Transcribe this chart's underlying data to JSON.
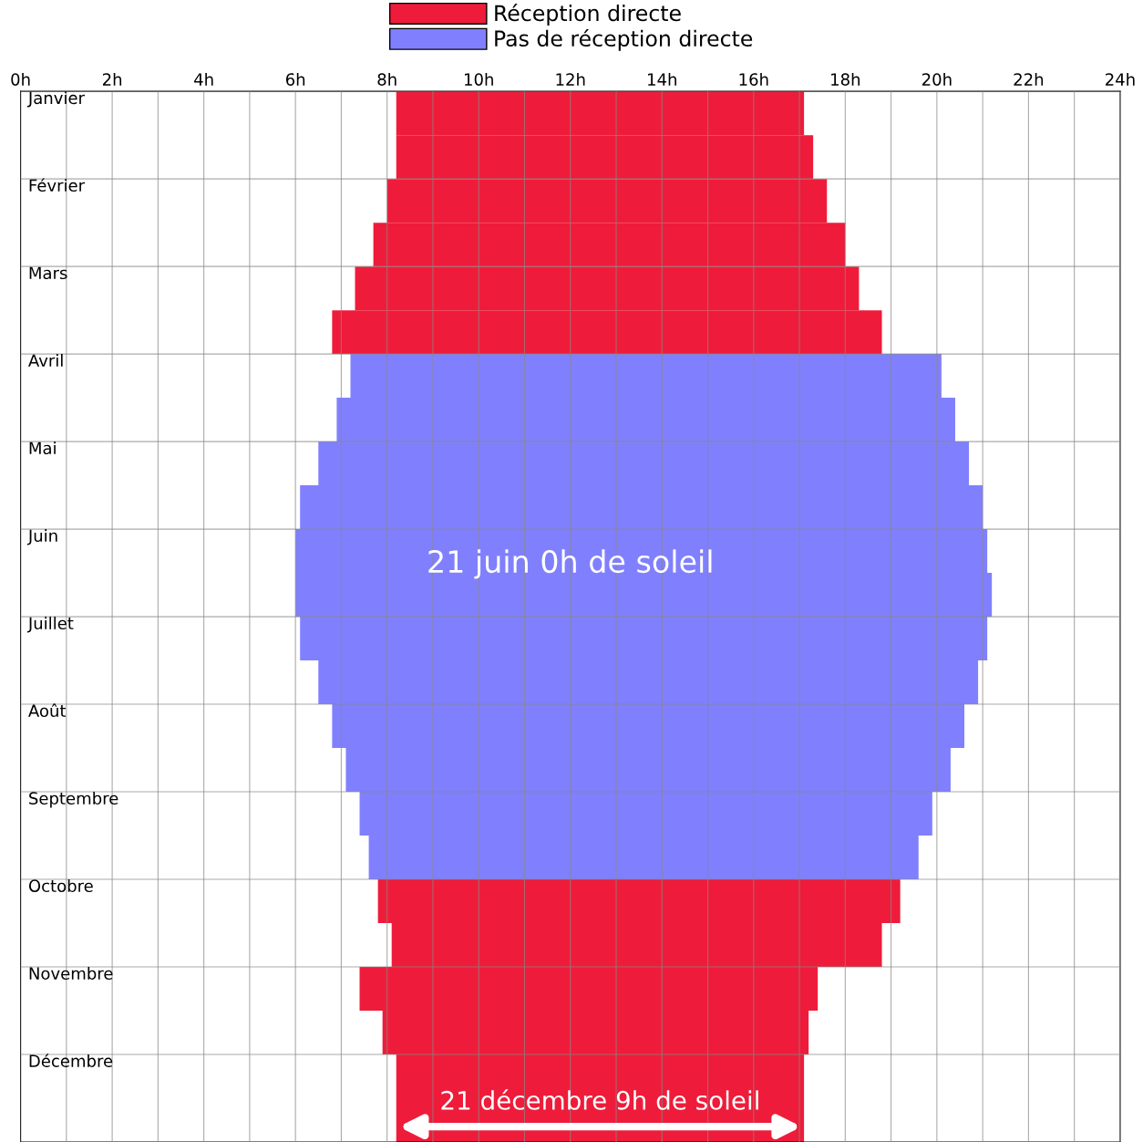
{
  "chart_data": {
    "type": "bar",
    "orientation": "horizontal",
    "categories": [
      "Janvier",
      null,
      "Février",
      null,
      "Mars",
      null,
      "Avril",
      null,
      "Mai",
      null,
      "Juin",
      null,
      "Juillet",
      null,
      "Août",
      null,
      "Septembre",
      null,
      "Octobre",
      null,
      "Novembre",
      null,
      "Décembre",
      null
    ],
    "series": [
      {
        "name": "Réception directe",
        "color": "#ee1c3a",
        "base": [
          8.2,
          8.2,
          8.0,
          7.7,
          7.3,
          6.8,
          null,
          null,
          null,
          null,
          null,
          null,
          null,
          null,
          null,
          null,
          null,
          null,
          7.8,
          8.1,
          7.4,
          7.9,
          8.2,
          8.2
        ],
        "values": [
          8.9,
          9.1,
          9.6,
          10.3,
          11.0,
          12.0,
          null,
          null,
          null,
          null,
          null,
          null,
          null,
          null,
          null,
          null,
          null,
          null,
          11.4,
          10.7,
          10.0,
          9.3,
          8.9,
          8.9
        ]
      },
      {
        "name": "Pas de réception directe",
        "color": "#8080ff",
        "base": [
          null,
          null,
          null,
          null,
          null,
          null,
          7.2,
          6.9,
          6.5,
          6.1,
          6.0,
          6.0,
          6.1,
          6.5,
          6.8,
          7.1,
          7.4,
          7.6,
          null,
          null,
          null,
          null,
          null,
          null
        ],
        "values": [
          null,
          null,
          null,
          null,
          null,
          null,
          12.9,
          13.5,
          14.2,
          14.9,
          15.1,
          15.2,
          15.0,
          14.4,
          13.8,
          13.2,
          12.5,
          12.0,
          null,
          null,
          null,
          null,
          null,
          null
        ]
      }
    ],
    "xlim": [
      0,
      24
    ],
    "xticks": [
      {
        "value": 0,
        "label": "0h"
      },
      {
        "value": 1,
        "label": null
      },
      {
        "value": 2,
        "label": "2h"
      },
      {
        "value": 3,
        "label": null
      },
      {
        "value": 4,
        "label": "4h"
      },
      {
        "value": 5,
        "label": null
      },
      {
        "value": 6,
        "label": "6h"
      },
      {
        "value": 7,
        "label": null
      },
      {
        "value": 8,
        "label": "8h"
      },
      {
        "value": 9,
        "label": null
      },
      {
        "value": 10,
        "label": "10h"
      },
      {
        "value": 11,
        "label": null
      },
      {
        "value": 12,
        "label": "12h"
      },
      {
        "value": 13,
        "label": null
      },
      {
        "value": 14,
        "label": "14h"
      },
      {
        "value": 15,
        "label": null
      },
      {
        "value": 16,
        "label": "16h"
      },
      {
        "value": 17,
        "label": null
      },
      {
        "value": 18,
        "label": "18h"
      },
      {
        "value": 19,
        "label": null
      },
      {
        "value": 20,
        "label": "20h"
      },
      {
        "value": 21,
        "label": null
      },
      {
        "value": 22,
        "label": "22h"
      },
      {
        "value": 23,
        "label": null
      },
      {
        "value": 24,
        "label": "24h"
      }
    ],
    "annotations": [
      "21 juin 0h de soleil",
      "21 décembre 9h de soleil"
    ],
    "grid": true,
    "legend": "top"
  }
}
